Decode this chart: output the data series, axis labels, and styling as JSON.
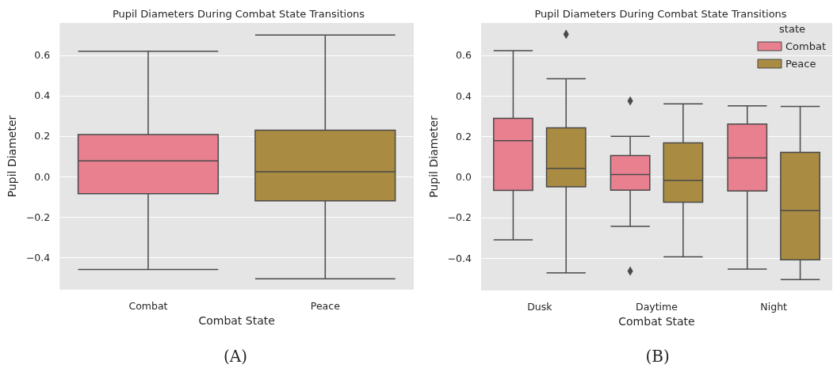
{
  "chart_data": [
    {
      "type": "box",
      "title": "Pupil Diameters During Combat State Transitions",
      "xlabel": "Combat State",
      "ylabel": "Pupil Diameter",
      "categories": [
        "Combat",
        "Peace"
      ],
      "boxes": [
        {
          "low": -0.46,
          "q1": -0.085,
          "median": 0.077,
          "q3": 0.208,
          "high": 0.62
        },
        {
          "low": -0.506,
          "q1": -0.12,
          "median": 0.024,
          "q3": 0.229,
          "high": 0.7
        }
      ],
      "colors": [
        "#e8808f",
        "#a98b42"
      ],
      "ylim": [
        -0.56,
        0.76
      ],
      "yticks": [
        {
          "value": -0.4,
          "label": "−0.4"
        },
        {
          "value": -0.2,
          "label": "−0.2"
        },
        {
          "value": 0,
          "label": "0.0"
        },
        0.2,
        0.4,
        0.6
      ],
      "grid": "y",
      "legend": false,
      "annotations": [
        "(A)"
      ]
    },
    {
      "type": "box",
      "title": "Pupil Diameters During Combat State Transitions",
      "xlabel": "Combat State",
      "ylabel": "Pupil Diameter",
      "legend_title": "state",
      "categories": [
        "Dusk",
        "Daytime",
        "Night"
      ],
      "series": [
        {
          "name": "Combat",
          "color": "#e8808f",
          "boxes": [
            {
              "low": -0.31,
              "q1": -0.066,
              "median": 0.179,
              "q3": 0.289,
              "high": 0.623
            },
            {
              "low": -0.244,
              "q1": -0.065,
              "median": 0.012,
              "q3": 0.106,
              "high": 0.201,
              "outliers": [
                0.375,
                -0.464
              ]
            },
            {
              "low": -0.455,
              "q1": -0.069,
              "median": 0.094,
              "q3": 0.261,
              "high": 0.351
            }
          ]
        },
        {
          "name": "Peace",
          "color": "#a98b42",
          "boxes": [
            {
              "low": -0.473,
              "q1": -0.048,
              "median": 0.042,
              "q3": 0.243,
              "high": 0.485,
              "outliers": [
                0.704
              ]
            },
            {
              "low": -0.394,
              "q1": -0.125,
              "median": -0.017,
              "q3": 0.168,
              "high": 0.361
            },
            {
              "low": -0.506,
              "q1": -0.409,
              "median": -0.166,
              "q3": 0.121,
              "high": 0.348
            }
          ]
        }
      ],
      "ylim": [
        -0.56,
        0.76
      ],
      "yticks": [
        {
          "value": -0.4,
          "label": "−0.4"
        },
        {
          "value": -0.2,
          "label": "−0.2"
        },
        {
          "value": 0,
          "label": "0.0"
        },
        0.2,
        0.4,
        0.6
      ],
      "grid": "y",
      "legend": "top right",
      "annotations": [
        "(B)"
      ]
    }
  ]
}
